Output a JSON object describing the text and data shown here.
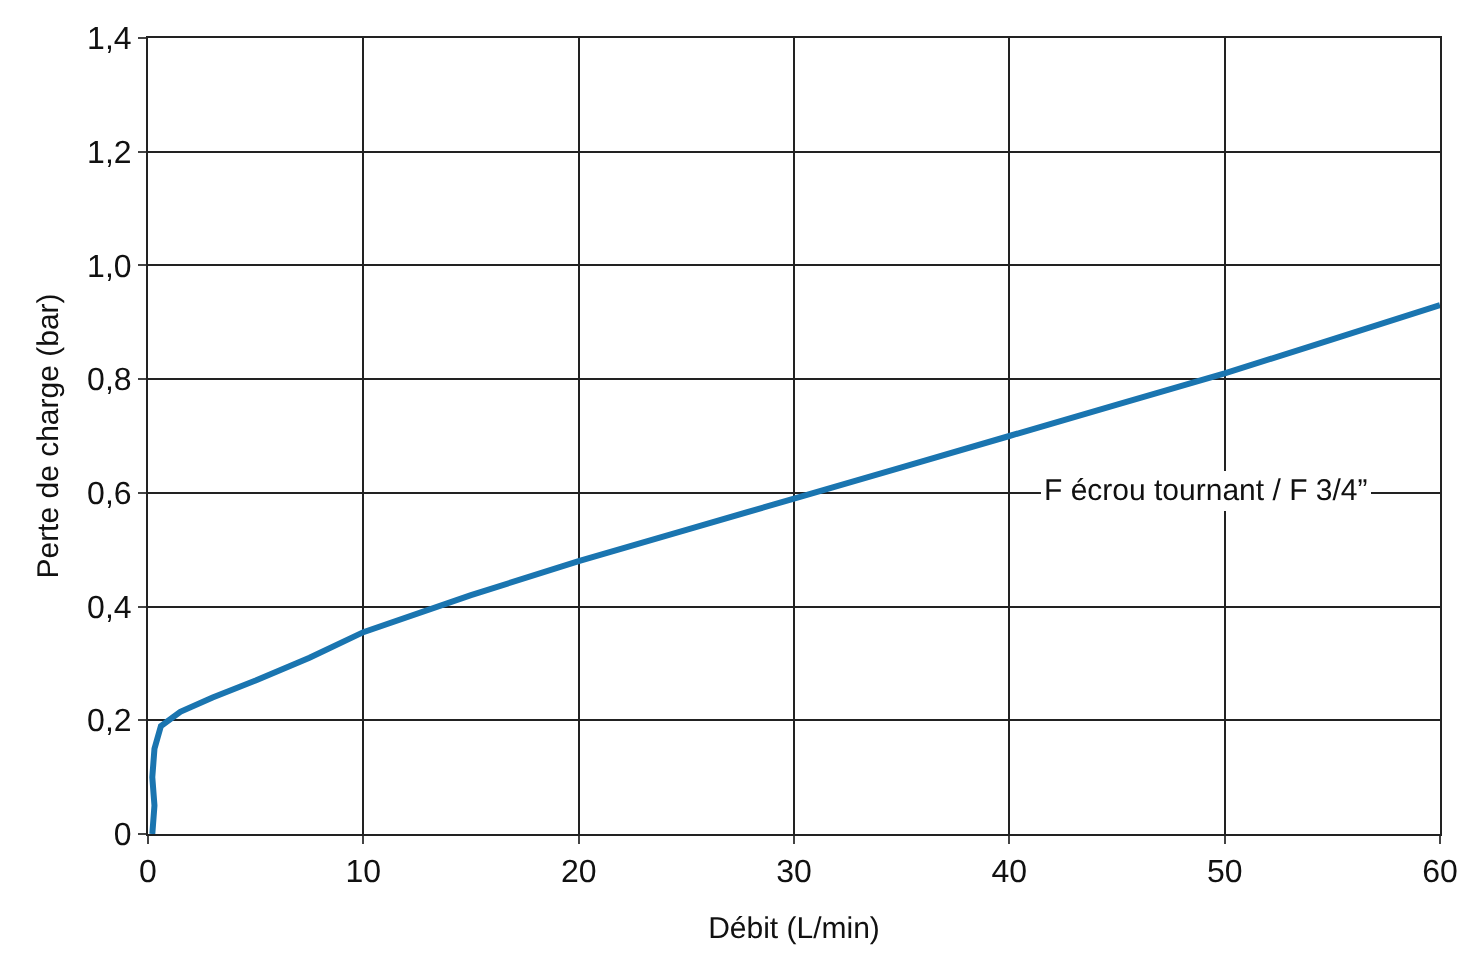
{
  "chart_data": {
    "type": "line",
    "xlabel": "Débit (L/min)",
    "ylabel": "Perte de charge (bar)",
    "xlim": [
      0,
      60
    ],
    "xticks": [
      0,
      10,
      20,
      30,
      40,
      50,
      60
    ],
    "ylim": [
      0,
      1.4
    ],
    "yticks": [
      0,
      {
        "value": 0.2,
        "label": "0,2"
      },
      {
        "value": 0.4,
        "label": "0,4"
      },
      {
        "value": 0.6,
        "label": "0,6"
      },
      {
        "value": 0.8,
        "label": "0,8"
      },
      {
        "value": 1.0,
        "label": "1,0"
      },
      {
        "value": 1.2,
        "label": "1,2"
      },
      {
        "value": 1.4,
        "label": "1,4"
      }
    ],
    "grid": true,
    "legend": false,
    "marker": "none",
    "line_style": "solid",
    "series": [
      {
        "name": "F écrou tournant / F 3/4”",
        "color": "#1a75b0",
        "x": [
          0.2,
          0.3,
          0.2,
          0.3,
          0.6,
          1.5,
          3,
          5,
          7.5,
          10,
          15,
          20,
          25,
          30,
          35,
          40,
          45,
          50,
          55,
          60
        ],
        "values": [
          0,
          0.05,
          0.1,
          0.15,
          0.19,
          0.215,
          0.24,
          0.27,
          0.31,
          0.355,
          0.42,
          0.48,
          0.535,
          0.59,
          0.645,
          0.7,
          0.755,
          0.81,
          0.87,
          0.93
        ]
      }
    ]
  }
}
